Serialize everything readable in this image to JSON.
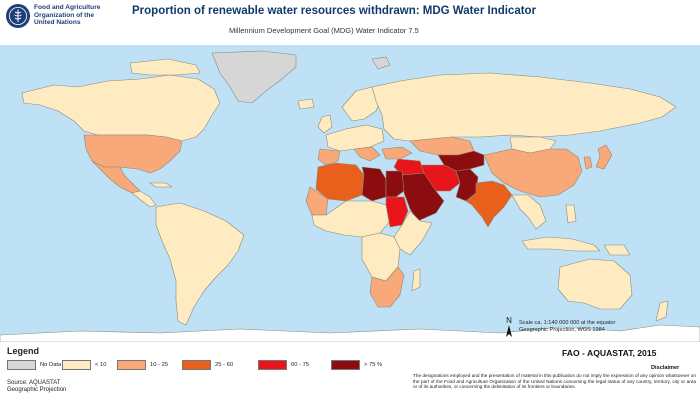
{
  "header": {
    "org_lines": [
      "Food and Agriculture",
      "Organization of the",
      "United Nations"
    ],
    "title": "Proportion of renewable water resources withdrawn: MDG Water Indicator",
    "subtitle": "Millennium Development Goal (MDG) Water Indicator 7.5"
  },
  "legend": {
    "title": "Legend",
    "items": [
      {
        "label": "No Data",
        "color": "#d6d6d6"
      },
      {
        "label": "< 10",
        "color": "#feebc2"
      },
      {
        "label": "10 - 25",
        "color": "#f9a879"
      },
      {
        "label": "25 - 60",
        "color": "#e8601c"
      },
      {
        "label": "60 - 75",
        "color": "#e8161b"
      },
      {
        "label": "> 75 %",
        "color": "#8c0d0f"
      }
    ]
  },
  "source_lines": [
    "Source: AQUASTAT",
    "Geographic Projection"
  ],
  "scale_lines": [
    "Scale ca. 1:140 000 000 at the equator",
    "Geographic Projection, WGS 1984"
  ],
  "north_label": "N",
  "credit": "FAO - AQUASTAT, 2015",
  "disclaimer_title": "Disclaimer",
  "disclaimer": "The designations employed and the presentation of material in this publication do not imply the expression of any opinion whatsoever on the part of the Food and Agriculture Organization of the United Nations concerning the legal status of any country, territory, city or area or of its authorities, or concerning the delimitation of its frontiers or boundaries.",
  "colors": {
    "ocean": "#bfe1f5",
    "country_border": "#8a8a7a"
  }
}
